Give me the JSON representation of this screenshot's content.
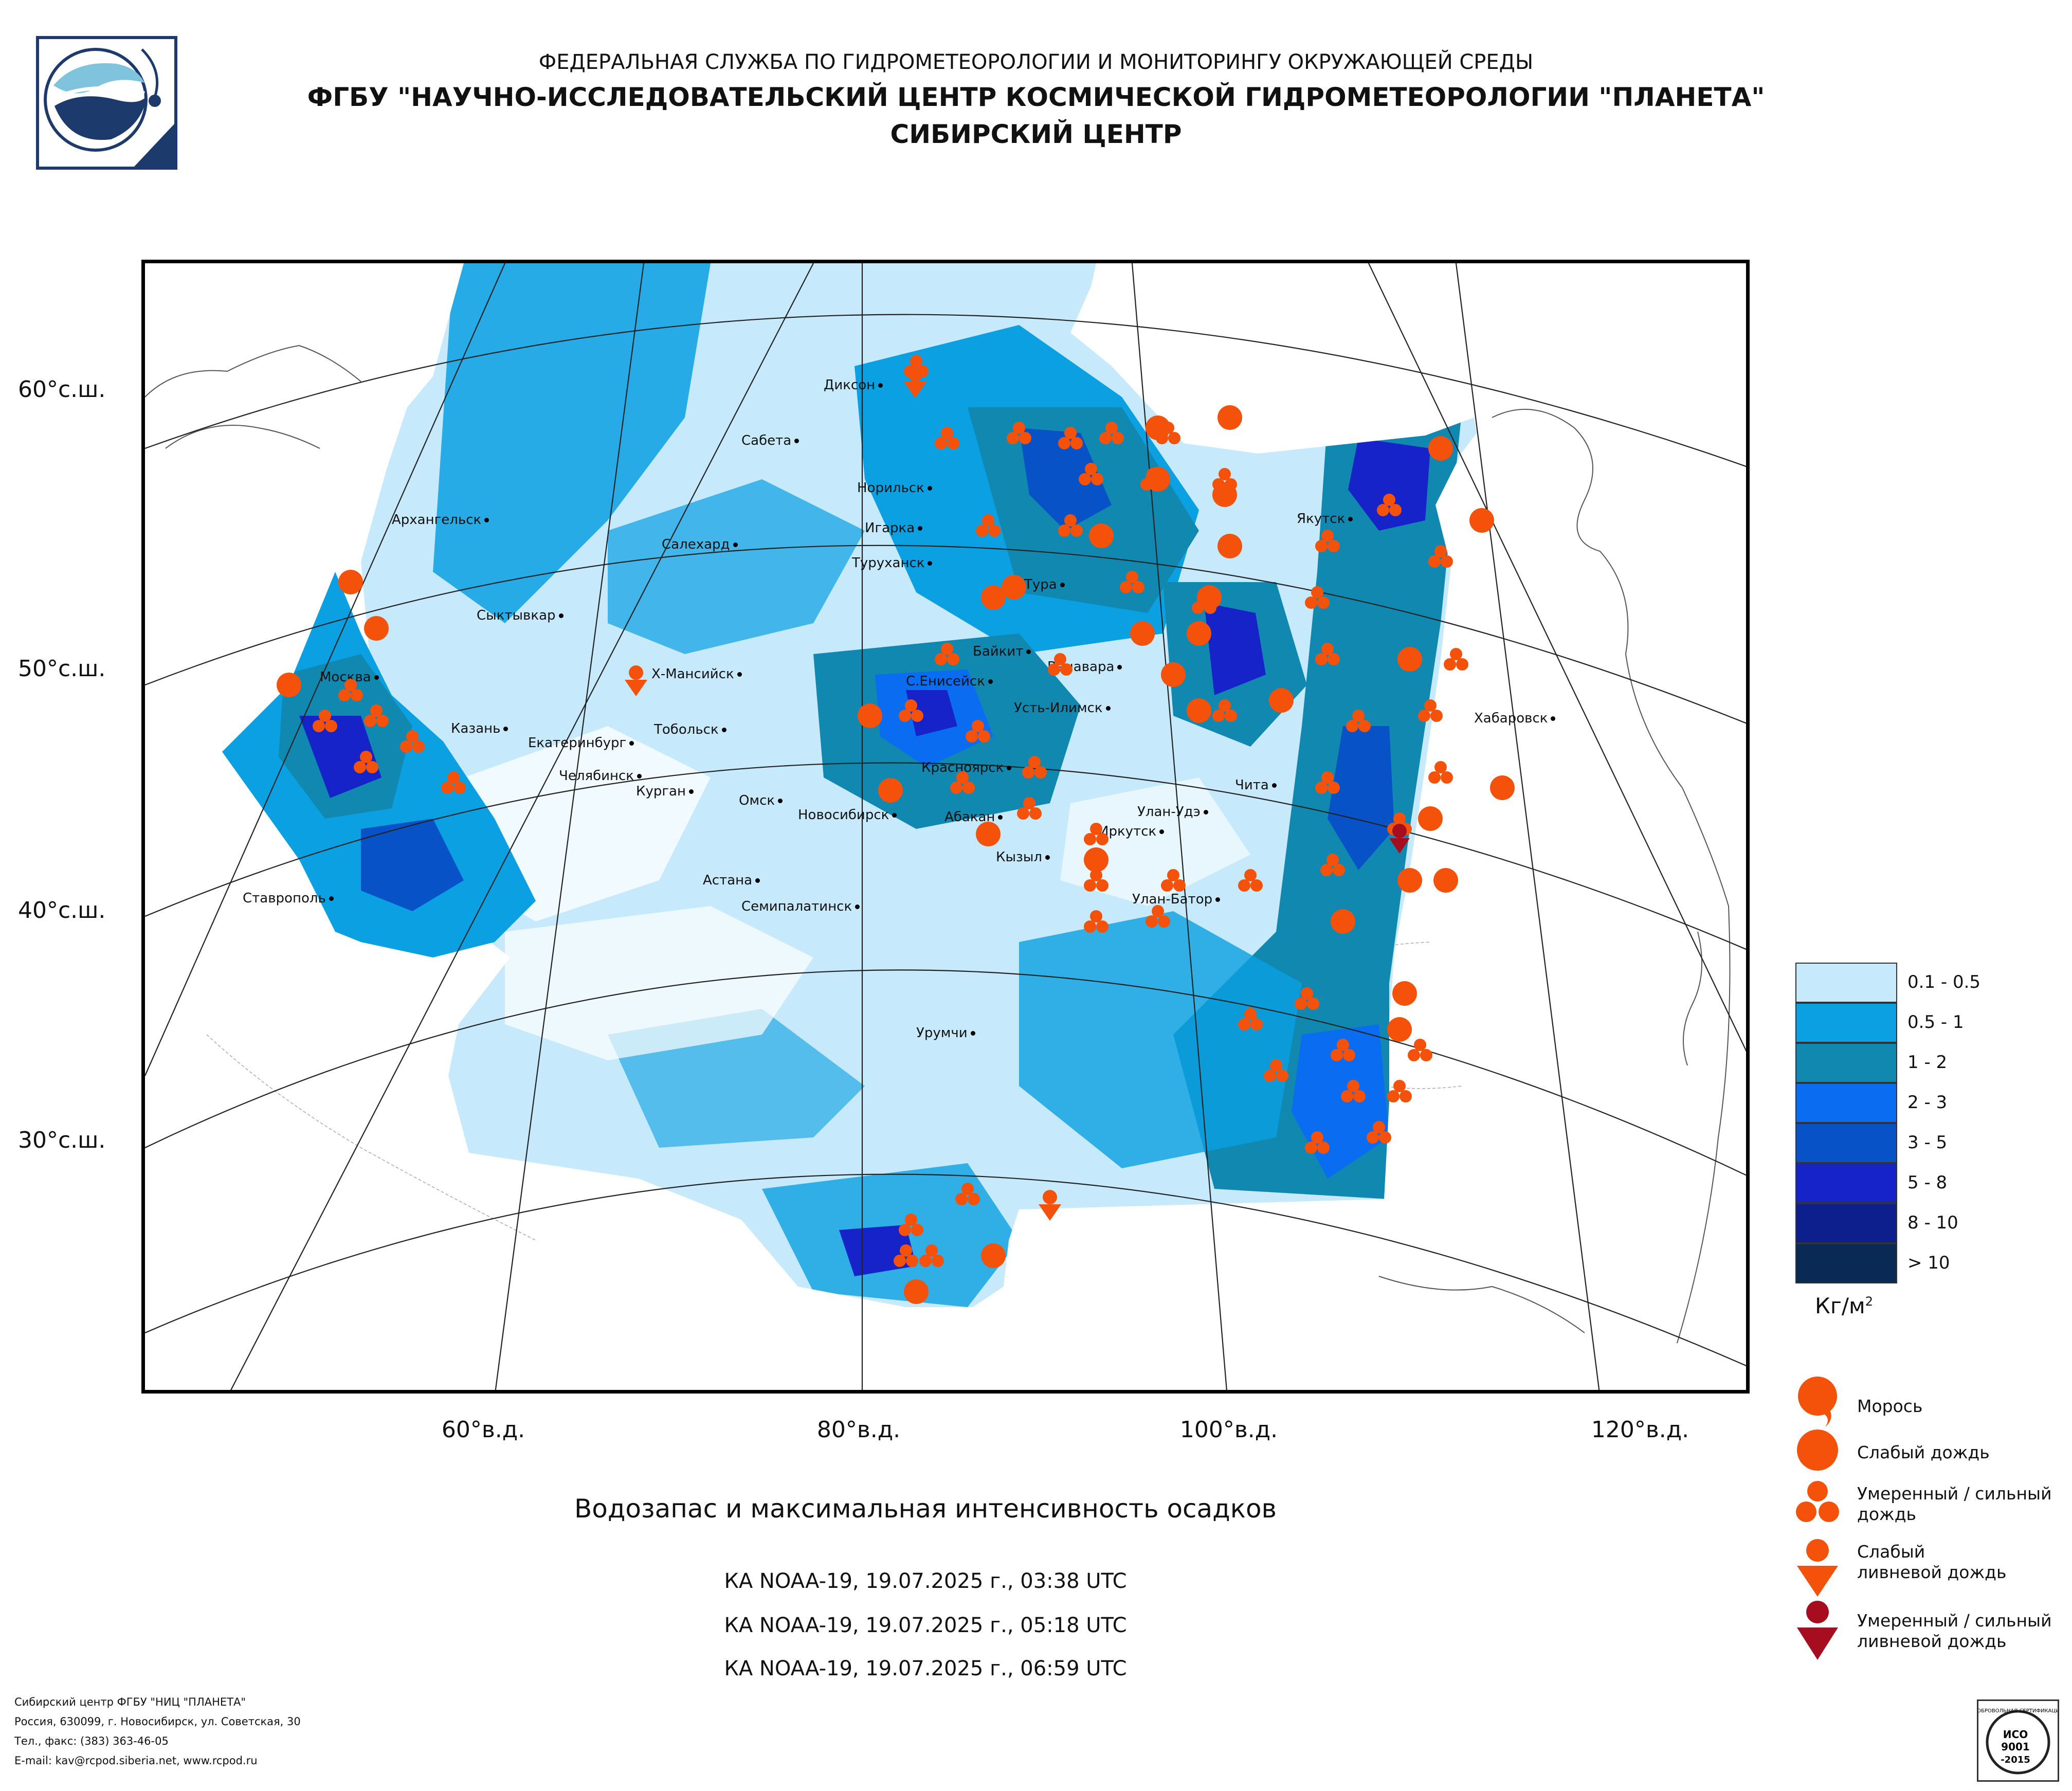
{
  "header": {
    "line1": "ФЕДЕРАЛЬНАЯ СЛУЖБА ПО ГИДРОМЕТЕОРОЛОГИИ И МОНИТОРИНГУ ОКРУЖАЮЩЕЙ СРЕДЫ",
    "line2": "ФГБУ \"НАУЧНО-ИССЛЕДОВАТЕЛЬСКИЙ ЦЕНТР КОСМИЧЕСКОЙ ГИДРОМЕТЕОРОЛОГИИ \"ПЛАНЕТА\"",
    "line3": "СИБИРСКИЙ ЦЕНТР"
  },
  "map": {
    "lat_labels": [
      "60°с.ш.",
      "50°с.ш.",
      "40°с.ш.",
      "30°с.ш."
    ],
    "lon_labels": [
      "60°в.д.",
      "80°в.д.",
      "100°в.д.",
      "120°в.д."
    ],
    "cities": [
      "Диксон",
      "Сабета",
      "Норильск",
      "Архангельск",
      "Салехард",
      "Игарка",
      "Туруханск",
      "Тура",
      "Якутск",
      "Сыктывкар",
      "Байкит",
      "Ванавара",
      "Х-Мансийск",
      "С.Енисейск",
      "Москва",
      "Усть-Илимск",
      "Казань",
      "Екатеринбург",
      "Тобольск",
      "Хабаровск",
      "Челябинск",
      "Курган",
      "Красноярск",
      "Чита",
      "Омск",
      "Новосибирск",
      "Абакан",
      "Улан-Удэ",
      "Иркутск",
      "Кызыл",
      "Астана",
      "Ставрополь",
      "Семипалатинск",
      "Улан-Батор",
      "Урумчи"
    ]
  },
  "legend": {
    "classes": [
      {
        "label": "0.1 - 0.5",
        "color": "#c6e9fb"
      },
      {
        "label": "0.5 - 1",
        "color": "#0aa0e2"
      },
      {
        "label": "1 - 2",
        "color": "#1188b0"
      },
      {
        "label": "2 - 3",
        "color": "#0a6cf0"
      },
      {
        "label": "3 - 5",
        "color": "#0652c6"
      },
      {
        "label": "5 - 8",
        "color": "#1623c8"
      },
      {
        "label": "8 - 10",
        "color": "#0c1f8c"
      },
      {
        "label": "> 10",
        "color": "#082a55"
      }
    ],
    "unit": "Кг/м",
    "unit_sup": "2",
    "symbols": [
      {
        "label": "Морось",
        "icon": "drizzle-icon"
      },
      {
        "label": "Слабый дождь",
        "icon": "light-rain-icon"
      },
      {
        "label": "Умеренный / сильный дождь",
        "icon": "moderate-rain-icon"
      },
      {
        "label": "Слабый ливневой дождь",
        "icon": "light-shower-icon"
      },
      {
        "label": "Умеренный / сильный ливневой дождь",
        "icon": "heavy-shower-icon"
      }
    ],
    "symbol_colors": {
      "orange": "#f4510b",
      "dark_red": "#a60d1e"
    }
  },
  "title": "Водозапас и максимальная интенсивность осадков",
  "passes": [
    "КА NOAA-19, 19.07.2025 г., 03:38 UTC",
    "КА NOAA-19, 19.07.2025 г., 05:18 UTC",
    "КА NOAA-19, 19.07.2025 г., 06:59 UTC"
  ],
  "footer": [
    "Сибирский центр ФГБУ \"НИЦ \"ПЛАНЕТА\"",
    "Россия, 630099, г. Новосибирск, ул. Советская, 30",
    "Тел., факс: (383) 363-46-05",
    "E-mail: kav@rcpod.siberia.net, www.rcpod.ru"
  ],
  "iso_badge": {
    "top": "ДОБРОВОЛЬНАЯ СЕРТИФИКАЦИЯ",
    "line1": "ИСО",
    "line2": "9001",
    "line3": "-2015"
  }
}
